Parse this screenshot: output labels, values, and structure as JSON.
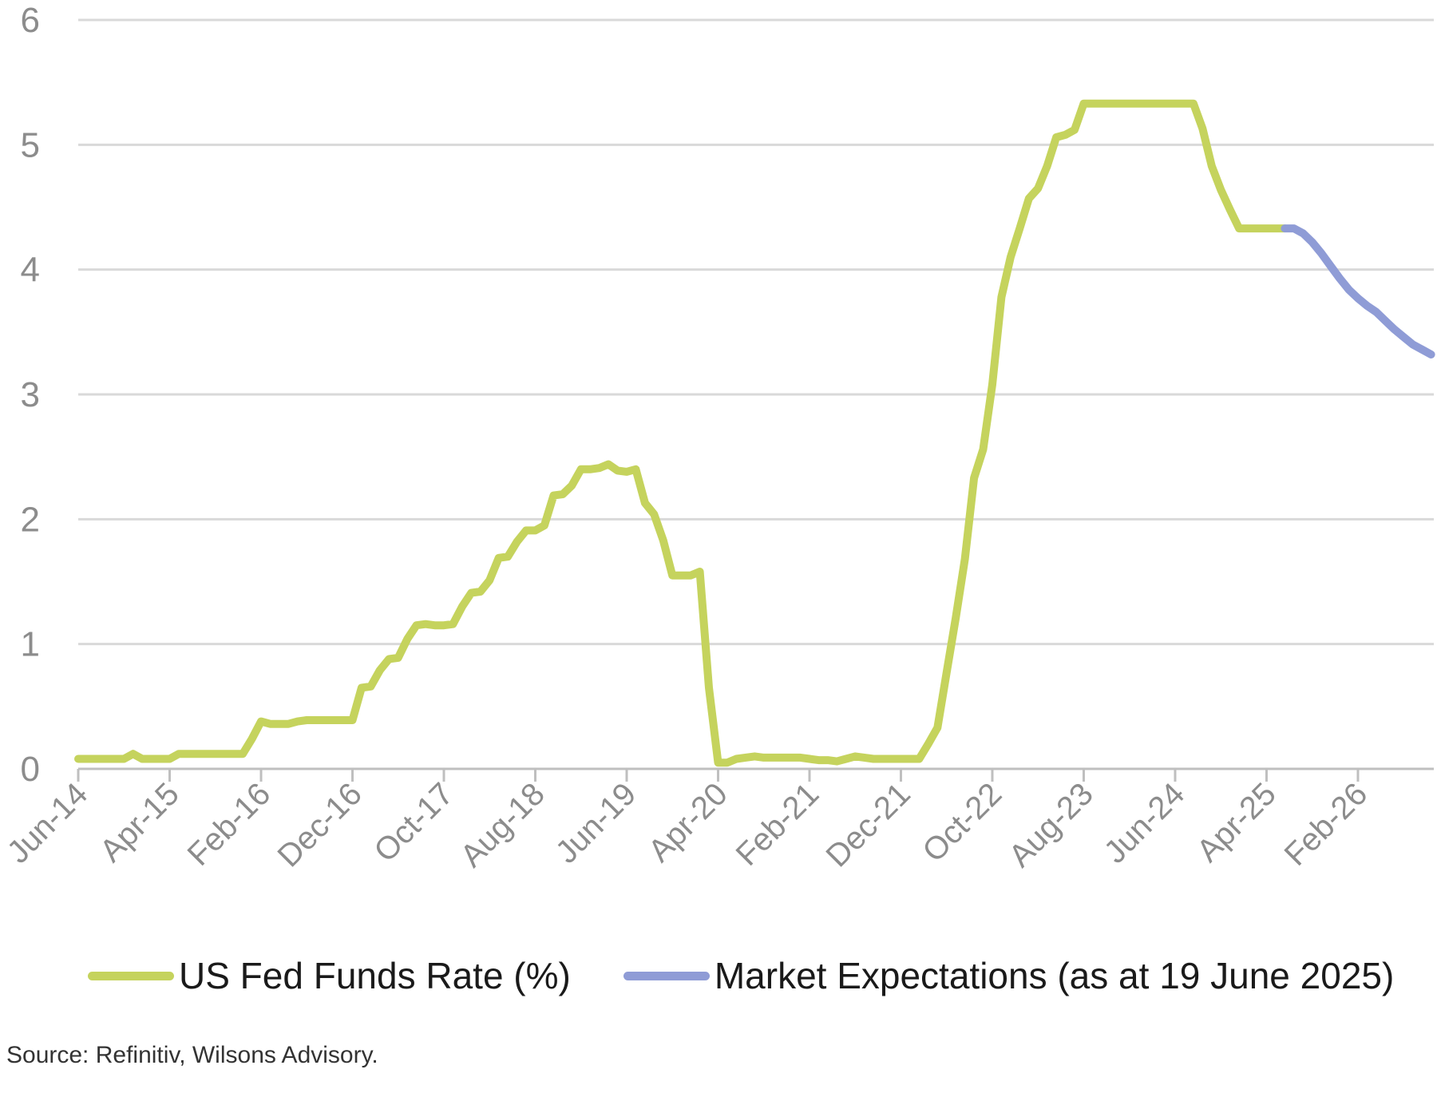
{
  "chart_data": {
    "type": "line",
    "title": "",
    "xlabel": "",
    "ylabel": "",
    "ylim": [
      0,
      6
    ],
    "yticks": [
      "0",
      "1",
      "2",
      "3",
      "4",
      "5",
      "6"
    ],
    "xticks": [
      "Jun-14",
      "Apr-15",
      "Feb-16",
      "Dec-16",
      "Oct-17",
      "Aug-18",
      "Jun-19",
      "Apr-20",
      "Feb-21",
      "Dec-21",
      "Oct-22",
      "Aug-23",
      "Jun-24",
      "Apr-25",
      "Feb-26"
    ],
    "grid": "horizontal",
    "legend_position": "bottom",
    "colors": {
      "fed": "#c5d35d",
      "market": "#8f9cd6",
      "grid": "#d9d9d9",
      "axis": "#bfbfbf",
      "tick_text": "#8c8c8c"
    },
    "series": [
      {
        "name": "US Fed Funds Rate (%)",
        "color": "#c5d35d",
        "x": [
          "2014-06",
          "2014-07",
          "2014-08",
          "2014-09",
          "2014-10",
          "2014-11",
          "2014-12",
          "2015-01",
          "2015-02",
          "2015-03",
          "2015-04",
          "2015-05",
          "2015-06",
          "2015-07",
          "2015-08",
          "2015-09",
          "2015-10",
          "2015-11",
          "2015-12",
          "2016-01",
          "2016-02",
          "2016-03",
          "2016-04",
          "2016-05",
          "2016-06",
          "2016-07",
          "2016-08",
          "2016-09",
          "2016-10",
          "2016-11",
          "2016-12",
          "2017-01",
          "2017-02",
          "2017-03",
          "2017-04",
          "2017-05",
          "2017-06",
          "2017-07",
          "2017-08",
          "2017-09",
          "2017-10",
          "2017-11",
          "2017-12",
          "2018-01",
          "2018-02",
          "2018-03",
          "2018-04",
          "2018-05",
          "2018-06",
          "2018-07",
          "2018-08",
          "2018-09",
          "2018-10",
          "2018-11",
          "2018-12",
          "2019-01",
          "2019-02",
          "2019-03",
          "2019-04",
          "2019-05",
          "2019-06",
          "2019-07",
          "2019-08",
          "2019-09",
          "2019-10",
          "2019-11",
          "2019-12",
          "2020-01",
          "2020-02",
          "2020-03",
          "2020-04",
          "2020-05",
          "2020-06",
          "2020-07",
          "2020-08",
          "2020-09",
          "2020-10",
          "2020-11",
          "2020-12",
          "2021-01",
          "2021-02",
          "2021-03",
          "2021-04",
          "2021-05",
          "2021-06",
          "2021-07",
          "2021-08",
          "2021-09",
          "2021-10",
          "2021-11",
          "2021-12",
          "2022-01",
          "2022-02",
          "2022-03",
          "2022-04",
          "2022-05",
          "2022-06",
          "2022-07",
          "2022-08",
          "2022-09",
          "2022-10",
          "2022-11",
          "2022-12",
          "2023-01",
          "2023-02",
          "2023-03",
          "2023-04",
          "2023-05",
          "2023-06",
          "2023-07",
          "2023-08",
          "2023-09",
          "2023-10",
          "2023-11",
          "2023-12",
          "2024-01",
          "2024-02",
          "2024-03",
          "2024-04",
          "2024-05",
          "2024-06",
          "2024-07",
          "2024-08",
          "2024-09",
          "2024-10",
          "2024-11",
          "2024-12",
          "2025-01",
          "2025-02",
          "2025-03",
          "2025-04",
          "2025-05",
          "2025-06"
        ],
        "values": [
          0.08,
          0.08,
          0.08,
          0.08,
          0.08,
          0.08,
          0.12,
          0.08,
          0.08,
          0.08,
          0.08,
          0.12,
          0.12,
          0.12,
          0.12,
          0.12,
          0.12,
          0.12,
          0.12,
          0.24,
          0.38,
          0.36,
          0.36,
          0.36,
          0.38,
          0.39,
          0.39,
          0.39,
          0.39,
          0.39,
          0.39,
          0.65,
          0.66,
          0.79,
          0.88,
          0.89,
          1.04,
          1.15,
          1.16,
          1.15,
          1.15,
          1.16,
          1.3,
          1.41,
          1.42,
          1.51,
          1.69,
          1.7,
          1.82,
          1.91,
          1.91,
          1.95,
          2.19,
          2.2,
          2.27,
          2.4,
          2.4,
          2.41,
          2.44,
          2.39,
          2.38,
          2.4,
          2.13,
          2.04,
          1.83,
          1.55,
          1.55,
          1.55,
          1.58,
          0.65,
          0.05,
          0.05,
          0.08,
          0.09,
          0.1,
          0.09,
          0.09,
          0.09,
          0.09,
          0.09,
          0.08,
          0.07,
          0.07,
          0.06,
          0.08,
          0.1,
          0.09,
          0.08,
          0.08,
          0.08,
          0.08,
          0.08,
          0.08,
          0.2,
          0.33,
          0.77,
          1.21,
          1.68,
          2.33,
          2.56,
          3.08,
          3.78,
          4.1,
          4.33,
          4.57,
          4.65,
          4.83,
          5.06,
          5.08,
          5.12,
          5.33,
          5.33,
          5.33,
          5.33,
          5.33,
          5.33,
          5.33,
          5.33,
          5.33,
          5.33,
          5.33,
          5.33,
          5.33,
          5.13,
          4.83,
          4.64,
          4.48,
          4.33,
          4.33,
          4.33,
          4.33,
          4.33,
          4.33
        ]
      },
      {
        "name": "Market Expectations (as at 19 June 2025)",
        "color": "#8f9cd6",
        "x": [
          "2025-06",
          "2025-07",
          "2025-08",
          "2025-09",
          "2025-10",
          "2025-11",
          "2025-12",
          "2026-01",
          "2026-02",
          "2026-03",
          "2026-04",
          "2026-05",
          "2026-06",
          "2026-07",
          "2026-08",
          "2026-09",
          "2026-10"
        ],
        "values": [
          4.33,
          4.33,
          4.29,
          4.22,
          4.13,
          4.03,
          3.93,
          3.84,
          3.77,
          3.71,
          3.66,
          3.59,
          3.52,
          3.46,
          3.4,
          3.36,
          3.32
        ]
      }
    ]
  },
  "legend": {
    "fed_label": "US Fed Funds Rate (%)",
    "market_label": "Market Expectations (as at 19 June 2025)"
  },
  "footer": {
    "source": "Source: Refinitiv, Wilsons Advisory."
  }
}
